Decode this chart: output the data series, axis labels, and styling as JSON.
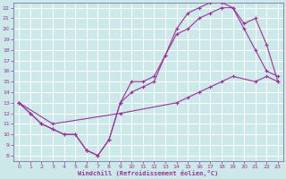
{
  "xlabel": "Windchill (Refroidissement éolien,°C)",
  "line_color": "#993399",
  "bg_color": "#cce8e8",
  "grid_color": "#aadddd",
  "xlim": [
    -0.5,
    23.5
  ],
  "ylim": [
    7.5,
    22.5
  ],
  "xticks": [
    0,
    1,
    2,
    3,
    4,
    5,
    6,
    7,
    8,
    9,
    10,
    11,
    12,
    13,
    14,
    15,
    16,
    17,
    18,
    19,
    20,
    21,
    22,
    23
  ],
  "yticks": [
    8,
    9,
    10,
    11,
    12,
    13,
    14,
    15,
    16,
    17,
    18,
    19,
    20,
    21,
    22
  ],
  "line1_x": [
    0,
    1,
    2,
    3,
    4,
    5,
    6,
    7,
    8,
    9,
    10,
    11,
    12,
    13,
    14,
    15,
    16,
    17,
    18,
    19,
    20,
    21,
    22,
    23
  ],
  "line1_y": [
    13,
    12,
    11,
    10.5,
    10,
    10,
    8.5,
    8,
    9.5,
    13,
    15,
    15,
    15.5,
    17.5,
    20,
    21.5,
    22,
    22.5,
    22.5,
    22,
    20.5,
    21,
    18.5,
    15
  ],
  "line2_x": [
    0,
    1,
    2,
    3,
    4,
    5,
    6,
    7,
    8,
    9,
    10,
    11,
    12,
    13,
    14,
    15,
    16,
    17,
    18,
    19,
    20,
    21,
    22,
    23
  ],
  "line2_y": [
    13,
    12,
    11,
    10.5,
    10,
    10,
    8.5,
    8,
    9.5,
    13,
    14,
    14.5,
    15,
    17.5,
    19.5,
    20,
    21,
    21.5,
    22,
    22,
    20,
    18,
    16,
    15.5
  ],
  "line3_x": [
    0,
    3,
    9,
    14,
    15,
    16,
    17,
    18,
    19,
    21,
    22,
    23
  ],
  "line3_y": [
    13,
    11,
    12,
    13,
    13.5,
    14,
    14.5,
    15,
    15.5,
    15,
    15.5,
    15
  ]
}
